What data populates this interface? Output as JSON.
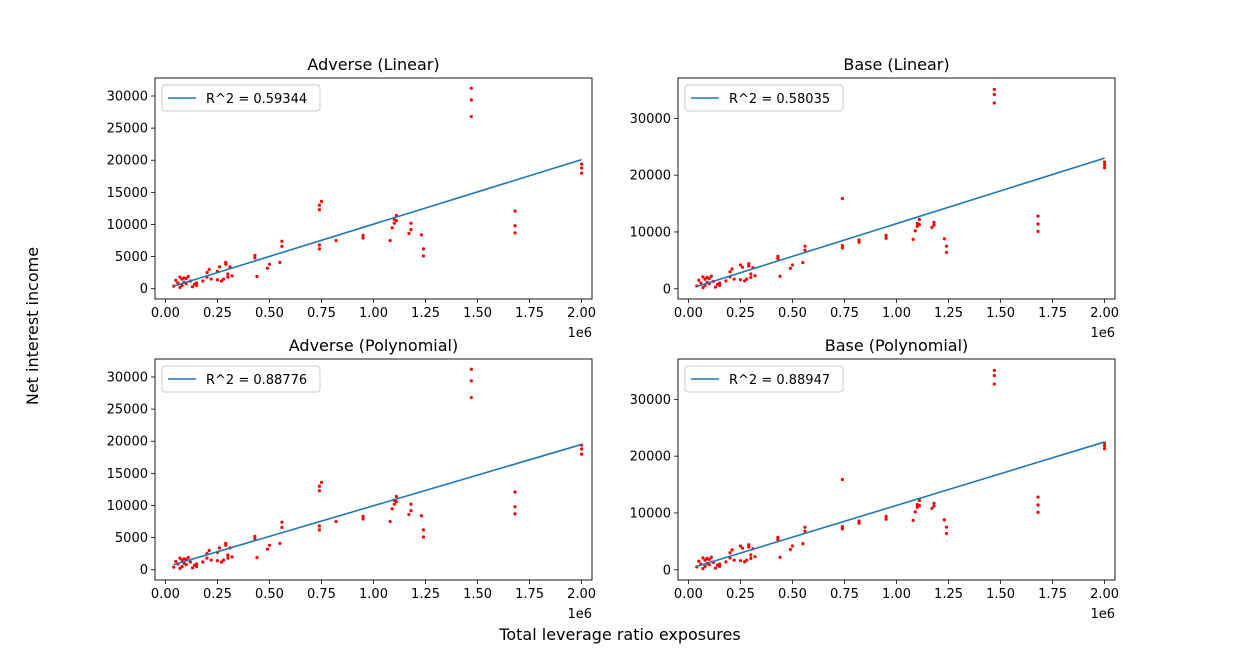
{
  "figure": {
    "supxlabel": "Total leverage ratio exposures",
    "supylabel": "Net interest income",
    "x_offset_label": "1e6"
  },
  "chart_data": [
    {
      "type": "scatter",
      "title": "Adverse (Linear)",
      "xlabel": "",
      "ylabel": "",
      "xlim": [
        -0.05,
        2.05
      ],
      "ylim": [
        -1600,
        32800
      ],
      "xticks": [
        0.0,
        0.25,
        0.5,
        0.75,
        1.0,
        1.25,
        1.5,
        1.75,
        2.0
      ],
      "xtick_labels": [
        "0.00",
        "0.25",
        "0.50",
        "0.75",
        "1.00",
        "1.25",
        "1.50",
        "1.75",
        "2.00"
      ],
      "yticks": [
        0,
        5000,
        10000,
        15000,
        20000,
        25000,
        30000
      ],
      "ytick_labels": [
        "0",
        "5000",
        "10000",
        "15000",
        "20000",
        "25000",
        "30000"
      ],
      "x_scale_label": "1e6",
      "legend": {
        "label": "R^2 = 0.59344",
        "position": "top-left"
      },
      "fit": {
        "name": "R^2 = 0.59344",
        "color": "#1f77b4",
        "x": [
          0.04,
          2.0
        ],
        "y": [
          400,
          20100
        ]
      },
      "points": {
        "color": "#ff0000",
        "x": [
          0.04,
          0.05,
          0.06,
          0.07,
          0.07,
          0.08,
          0.08,
          0.09,
          0.09,
          0.1,
          0.1,
          0.11,
          0.12,
          0.13,
          0.14,
          0.15,
          0.15,
          0.18,
          0.2,
          0.2,
          0.21,
          0.22,
          0.25,
          0.25,
          0.26,
          0.27,
          0.28,
          0.29,
          0.29,
          0.3,
          0.3,
          0.31,
          0.32,
          0.43,
          0.43,
          0.44,
          0.49,
          0.5,
          0.55,
          0.56,
          0.56,
          0.74,
          0.74,
          0.74,
          0.74,
          0.75,
          0.82,
          0.95,
          0.95,
          1.08,
          1.09,
          1.1,
          1.1,
          1.11,
          1.11,
          1.17,
          1.18,
          1.18,
          1.23,
          1.24,
          1.24,
          1.47,
          1.47,
          1.47,
          1.68,
          1.68,
          1.68,
          2.0,
          2.0,
          2.0
        ],
        "y": [
          400,
          1300,
          900,
          1800,
          200,
          1500,
          500,
          1700,
          1000,
          1600,
          800,
          1900,
          1200,
          300,
          700,
          500,
          900,
          1200,
          2500,
          1800,
          3000,
          1500,
          2700,
          1400,
          3400,
          1200,
          1500,
          3800,
          4100,
          2300,
          1800,
          3400,
          2000,
          5200,
          4800,
          1900,
          3200,
          3800,
          4100,
          6600,
          7400,
          6200,
          6800,
          12300,
          13000,
          13600,
          7500,
          7900,
          8300,
          7500,
          9500,
          10200,
          10800,
          11400,
          10600,
          8600,
          9200,
          10200,
          8400,
          6200,
          5100,
          26800,
          29400,
          31200,
          8700,
          9800,
          12100,
          18000,
          18800,
          19400
        ]
      }
    },
    {
      "type": "scatter",
      "title": "Base (Linear)",
      "xlabel": "",
      "ylabel": "",
      "xlim": [
        -0.05,
        2.05
      ],
      "ylim": [
        -1800,
        37100
      ],
      "xticks": [
        0.0,
        0.25,
        0.5,
        0.75,
        1.0,
        1.25,
        1.5,
        1.75,
        2.0
      ],
      "xtick_labels": [
        "0.00",
        "0.25",
        "0.50",
        "0.75",
        "1.00",
        "1.25",
        "1.50",
        "1.75",
        "2.00"
      ],
      "yticks": [
        0,
        10000,
        20000,
        30000
      ],
      "ytick_labels": [
        "0",
        "10000",
        "20000",
        "30000"
      ],
      "x_scale_label": "1e6",
      "legend": {
        "label": "R^2 = 0.58035",
        "position": "top-left"
      },
      "fit": {
        "name": "R^2 = 0.58035",
        "color": "#1f77b4",
        "x": [
          0.04,
          2.0
        ],
        "y": [
          400,
          23000
        ]
      },
      "points": {
        "color": "#ff0000",
        "x": [
          0.04,
          0.05,
          0.06,
          0.07,
          0.07,
          0.08,
          0.08,
          0.09,
          0.09,
          0.1,
          0.1,
          0.11,
          0.12,
          0.13,
          0.14,
          0.15,
          0.15,
          0.18,
          0.2,
          0.2,
          0.21,
          0.22,
          0.25,
          0.25,
          0.26,
          0.27,
          0.28,
          0.29,
          0.29,
          0.3,
          0.3,
          0.31,
          0.32,
          0.43,
          0.43,
          0.44,
          0.49,
          0.5,
          0.55,
          0.56,
          0.56,
          0.74,
          0.74,
          0.74,
          0.82,
          0.82,
          0.95,
          0.95,
          1.08,
          1.09,
          1.1,
          1.1,
          1.11,
          1.11,
          1.17,
          1.18,
          1.18,
          1.23,
          1.24,
          1.24,
          1.47,
          1.47,
          1.47,
          1.68,
          1.68,
          1.68,
          2.0,
          2.0,
          2.0
        ],
        "y": [
          500,
          1500,
          1000,
          2100,
          200,
          1700,
          600,
          2000,
          1100,
          1800,
          900,
          2200,
          1300,
          300,
          800,
          600,
          1000,
          1400,
          3000,
          2100,
          3500,
          1700,
          4200,
          1600,
          3800,
          1400,
          1700,
          4400,
          4000,
          2600,
          2000,
          3700,
          2300,
          5700,
          5300,
          2200,
          3600,
          4200,
          4600,
          6800,
          7500,
          7200,
          15900,
          7600,
          8200,
          8600,
          8900,
          9400,
          8700,
          10200,
          11000,
          11500,
          12200,
          11300,
          10800,
          11200,
          11700,
          8800,
          7500,
          6400,
          32700,
          34200,
          35100,
          10100,
          11400,
          12800,
          21300,
          21800,
          22300
        ]
      }
    },
    {
      "type": "scatter",
      "title": "Adverse (Polynomial)",
      "xlabel": "",
      "ylabel": "",
      "xlim": [
        -0.05,
        2.05
      ],
      "ylim": [
        -1600,
        32800
      ],
      "xticks": [
        0.0,
        0.25,
        0.5,
        0.75,
        1.0,
        1.25,
        1.5,
        1.75,
        2.0
      ],
      "xtick_labels": [
        "0.00",
        "0.25",
        "0.50",
        "0.75",
        "1.00",
        "1.25",
        "1.50",
        "1.75",
        "2.00"
      ],
      "yticks": [
        0,
        5000,
        10000,
        15000,
        20000,
        25000,
        30000
      ],
      "ytick_labels": [
        "0",
        "5000",
        "10000",
        "15000",
        "20000",
        "25000",
        "30000"
      ],
      "x_scale_label": "1e6",
      "legend": {
        "label": "R^2 = 0.88776",
        "position": "top-left"
      },
      "fit": {
        "name": "R^2 = 0.88776",
        "color": "#1f77b4",
        "x": [
          0.04,
          2.0
        ],
        "y": [
          800,
          19500
        ]
      },
      "points": {
        "color": "#ff0000",
        "x": [
          0.04,
          0.05,
          0.06,
          0.07,
          0.07,
          0.08,
          0.08,
          0.09,
          0.09,
          0.1,
          0.1,
          0.11,
          0.12,
          0.13,
          0.14,
          0.15,
          0.15,
          0.18,
          0.2,
          0.2,
          0.21,
          0.22,
          0.25,
          0.25,
          0.26,
          0.27,
          0.28,
          0.29,
          0.29,
          0.3,
          0.3,
          0.31,
          0.32,
          0.43,
          0.43,
          0.44,
          0.49,
          0.5,
          0.55,
          0.56,
          0.56,
          0.74,
          0.74,
          0.74,
          0.74,
          0.75,
          0.82,
          0.95,
          0.95,
          1.08,
          1.09,
          1.1,
          1.1,
          1.11,
          1.11,
          1.17,
          1.18,
          1.18,
          1.23,
          1.24,
          1.24,
          1.47,
          1.47,
          1.47,
          1.68,
          1.68,
          1.68,
          2.0,
          2.0,
          2.0
        ],
        "y": [
          400,
          1300,
          900,
          1800,
          200,
          1500,
          500,
          1700,
          1000,
          1600,
          800,
          1900,
          1200,
          300,
          700,
          500,
          900,
          1200,
          2500,
          1800,
          3000,
          1500,
          2700,
          1400,
          3400,
          1200,
          1500,
          3800,
          4100,
          2300,
          1800,
          3400,
          2000,
          5200,
          4800,
          1900,
          3200,
          3800,
          4100,
          6600,
          7400,
          6200,
          6800,
          12300,
          13000,
          13600,
          7500,
          7900,
          8300,
          7500,
          9500,
          10200,
          10800,
          11400,
          10600,
          8600,
          9200,
          10200,
          8400,
          6200,
          5100,
          26800,
          29400,
          31200,
          8700,
          9800,
          12100,
          18000,
          18800,
          19400
        ]
      }
    },
    {
      "type": "scatter",
      "title": "Base (Polynomial)",
      "xlabel": "",
      "ylabel": "",
      "xlim": [
        -0.05,
        2.05
      ],
      "ylim": [
        -1800,
        37100
      ],
      "xticks": [
        0.0,
        0.25,
        0.5,
        0.75,
        1.0,
        1.25,
        1.5,
        1.75,
        2.0
      ],
      "xtick_labels": [
        "0.00",
        "0.25",
        "0.50",
        "0.75",
        "1.00",
        "1.25",
        "1.50",
        "1.75",
        "2.00"
      ],
      "yticks": [
        0,
        10000,
        20000,
        30000
      ],
      "ytick_labels": [
        "0",
        "10000",
        "20000",
        "30000"
      ],
      "x_scale_label": "1e6",
      "legend": {
        "label": "R^2 = 0.88947",
        "position": "top-left"
      },
      "fit": {
        "name": "R^2 = 0.88947",
        "color": "#1f77b4",
        "x": [
          0.04,
          2.0
        ],
        "y": [
          600,
          22500
        ]
      },
      "points": {
        "color": "#ff0000",
        "x": [
          0.04,
          0.05,
          0.06,
          0.07,
          0.07,
          0.08,
          0.08,
          0.09,
          0.09,
          0.1,
          0.1,
          0.11,
          0.12,
          0.13,
          0.14,
          0.15,
          0.15,
          0.18,
          0.2,
          0.2,
          0.21,
          0.22,
          0.25,
          0.25,
          0.26,
          0.27,
          0.28,
          0.29,
          0.29,
          0.3,
          0.3,
          0.31,
          0.32,
          0.43,
          0.43,
          0.44,
          0.49,
          0.5,
          0.55,
          0.56,
          0.56,
          0.74,
          0.74,
          0.74,
          0.82,
          0.82,
          0.95,
          0.95,
          1.08,
          1.09,
          1.1,
          1.1,
          1.11,
          1.11,
          1.17,
          1.18,
          1.18,
          1.23,
          1.24,
          1.24,
          1.47,
          1.47,
          1.47,
          1.68,
          1.68,
          1.68,
          2.0,
          2.0,
          2.0
        ],
        "y": [
          500,
          1500,
          1000,
          2100,
          200,
          1700,
          600,
          2000,
          1100,
          1800,
          900,
          2200,
          1300,
          300,
          800,
          600,
          1000,
          1400,
          3000,
          2100,
          3500,
          1700,
          4200,
          1600,
          3800,
          1400,
          1700,
          4400,
          4000,
          2600,
          2000,
          3700,
          2300,
          5700,
          5300,
          2200,
          3600,
          4200,
          4600,
          6800,
          7500,
          7200,
          15900,
          7600,
          8200,
          8600,
          8900,
          9400,
          8700,
          10200,
          11000,
          11500,
          12200,
          11300,
          10800,
          11200,
          11700,
          8800,
          7500,
          6400,
          32700,
          34200,
          35100,
          10100,
          11400,
          12800,
          21300,
          21800,
          22300
        ]
      }
    }
  ]
}
